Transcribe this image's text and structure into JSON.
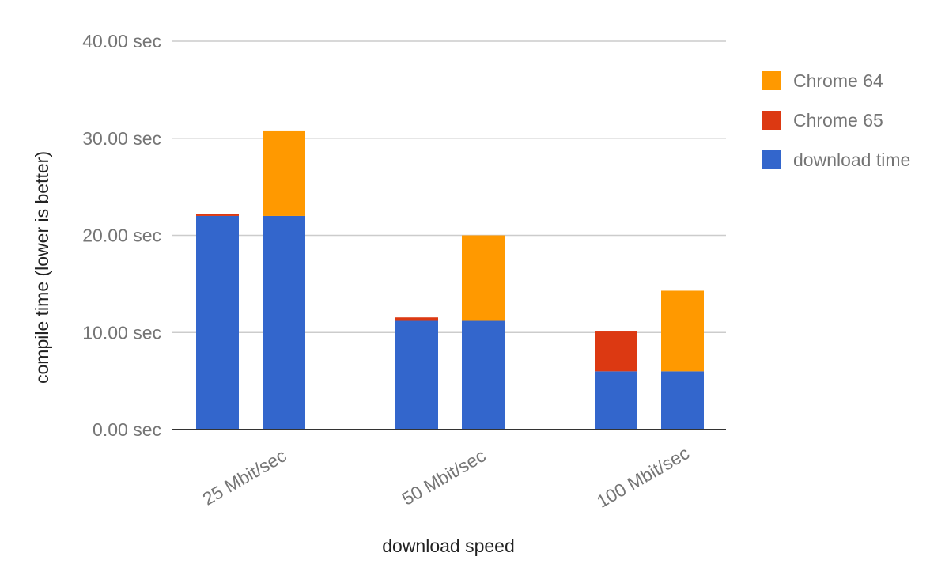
{
  "chart_data": {
    "type": "bar",
    "stacked": true,
    "xlabel": "download speed",
    "ylabel": "compile time (lower is better)",
    "ylim": [
      0,
      40
    ],
    "yticks": [
      {
        "value": 0,
        "label": "0.00 sec"
      },
      {
        "value": 10,
        "label": "10.00 sec"
      },
      {
        "value": 20,
        "label": "20.00 sec"
      },
      {
        "value": 30,
        "label": "30.00 sec"
      },
      {
        "value": 40,
        "label": "40.00 sec"
      }
    ],
    "grid": true,
    "legend_position": "right",
    "categories": [
      "25 Mbit/sec",
      "50 Mbit/sec",
      "100 Mbit/sec"
    ],
    "bars_per_category": 2,
    "series": [
      {
        "name": "download time",
        "color": "#3366cc",
        "values": [
          [
            22.0,
            22.0
          ],
          [
            11.2,
            11.2
          ],
          [
            6.0,
            6.0
          ]
        ]
      },
      {
        "name": "Chrome 65",
        "color": "#dc3912",
        "values": [
          [
            0.2,
            0.0
          ],
          [
            0.35,
            0.0
          ],
          [
            4.1,
            0.0
          ]
        ]
      },
      {
        "name": "Chrome 64",
        "color": "#ff9900",
        "values": [
          [
            0.0,
            8.8
          ],
          [
            0.0,
            8.8
          ],
          [
            0.0,
            8.3
          ]
        ]
      }
    ],
    "legend_order": [
      "Chrome 64",
      "Chrome 65",
      "download time"
    ]
  }
}
